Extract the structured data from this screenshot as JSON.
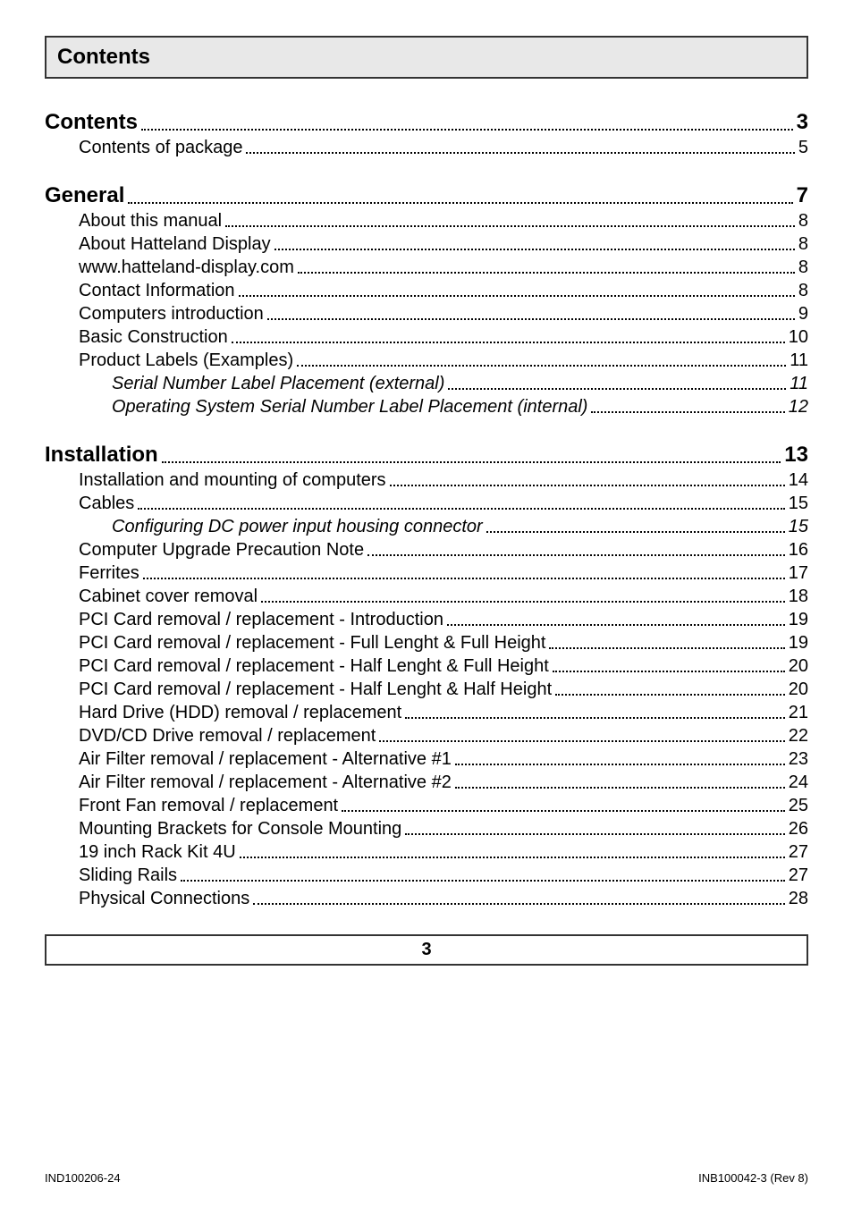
{
  "title": "Contents",
  "page_number": "3",
  "footer_left": "IND100206-24",
  "footer_right": "INB100042-3 (Rev 8)",
  "colors": {
    "border": "#333333",
    "title_bg": "#e8e8e8",
    "text": "#000000",
    "page_bg": "#ffffff"
  },
  "typography": {
    "title_fontsize": 24,
    "level0_fontsize": 24,
    "level1_fontsize": 20,
    "level2_fontsize": 20,
    "footer_fontsize": 13
  },
  "sections": [
    {
      "entries": [
        {
          "level": 0,
          "label": "Contents",
          "page": "3"
        },
        {
          "level": 1,
          "label": "Contents of package",
          "page": "5"
        }
      ]
    },
    {
      "entries": [
        {
          "level": 0,
          "label": "General",
          "page": "7"
        },
        {
          "level": 1,
          "label": "About this manual",
          "page": "8"
        },
        {
          "level": 1,
          "label": "About Hatteland Display",
          "page": "8"
        },
        {
          "level": 1,
          "label": "www.hatteland-display.com",
          "page": "8"
        },
        {
          "level": 1,
          "label": "Contact Information",
          "page": "8"
        },
        {
          "level": 1,
          "label": "Computers introduction",
          "page": "9"
        },
        {
          "level": 1,
          "label": "Basic Construction",
          "page": "10"
        },
        {
          "level": 1,
          "label": "Product Labels (Examples)",
          "page": "11"
        },
        {
          "level": 2,
          "label": "Serial Number Label Placement (external)",
          "page": "11"
        },
        {
          "level": 2,
          "label": "Operating System Serial Number Label Placement (internal)",
          "page": "12"
        }
      ]
    },
    {
      "entries": [
        {
          "level": 0,
          "label": "Installation",
          "page": "13"
        },
        {
          "level": 1,
          "label": "Installation and mounting of computers",
          "page": "14"
        },
        {
          "level": 1,
          "label": "Cables",
          "page": "15"
        },
        {
          "level": 2,
          "label": "Configuring DC power input housing connector",
          "page": "15"
        },
        {
          "level": 1,
          "label": "Computer Upgrade Precaution Note",
          "page": "16"
        },
        {
          "level": 1,
          "label": "Ferrites",
          "page": "17"
        },
        {
          "level": 1,
          "label": "Cabinet cover removal",
          "page": "18"
        },
        {
          "level": 1,
          "label": "PCI Card removal / replacement - Introduction",
          "page": "19"
        },
        {
          "level": 1,
          "label": "PCI Card removal / replacement - Full Lenght & Full Height",
          "page": "19"
        },
        {
          "level": 1,
          "label": "PCI Card removal / replacement - Half Lenght & Full Height",
          "page": "20"
        },
        {
          "level": 1,
          "label": "PCI Card removal / replacement - Half Lenght & Half Height",
          "page": "20"
        },
        {
          "level": 1,
          "label": "Hard Drive (HDD) removal / replacement",
          "page": "21"
        },
        {
          "level": 1,
          "label": "DVD/CD Drive removal / replacement",
          "page": "22"
        },
        {
          "level": 1,
          "label": "Air Filter removal / replacement - Alternative #1",
          "page": "23"
        },
        {
          "level": 1,
          "label": "Air Filter removal / replacement - Alternative #2",
          "page": "24"
        },
        {
          "level": 1,
          "label": "Front Fan removal / replacement",
          "page": "25"
        },
        {
          "level": 1,
          "label": "Mounting Brackets for Console Mounting",
          "page": "26"
        },
        {
          "level": 1,
          "label": "19 inch Rack Kit 4U",
          "page": "27"
        },
        {
          "level": 1,
          "label": "Sliding Rails",
          "page": "27"
        },
        {
          "level": 1,
          "label": "Physical Connections",
          "page": "28"
        }
      ]
    }
  ]
}
